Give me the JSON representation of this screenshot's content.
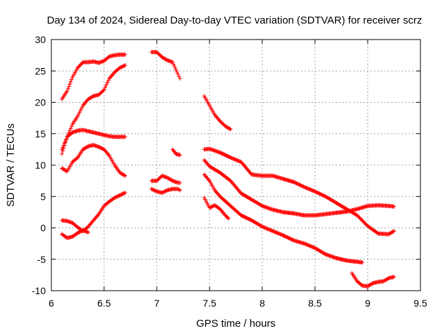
{
  "chart_data": {
    "type": "scatter",
    "title": "Day 134 of 2024, Sidereal Day-to-day VTEC variation (SDTVAR) for receiver scrz",
    "xlabel": "GPS time / hours",
    "ylabel": "SDTVAR / TECUs",
    "xlim": [
      6,
      9.5
    ],
    "ylim": [
      -10,
      30
    ],
    "xticks": [
      "6",
      "6.5",
      "7",
      "7.5",
      "8",
      "8.5",
      "9",
      "9.5"
    ],
    "yticks": [
      "-10",
      "-5",
      "0",
      "5",
      "10",
      "15",
      "20",
      "25",
      "30"
    ],
    "grid": true,
    "marker": "plus",
    "color": "#ff0000",
    "series": [
      {
        "name": "track-1a",
        "x": [
          6.1,
          6.15,
          6.2,
          6.25,
          6.3,
          6.35,
          6.4,
          6.45,
          6.5,
          6.55,
          6.6,
          6.65,
          6.7
        ],
        "y": [
          20.5,
          21.8,
          24,
          25.5,
          26.4,
          26.4,
          26.5,
          26.3,
          26.6,
          27.3,
          27.5,
          27.6,
          27.6
        ]
      },
      {
        "name": "track-1b",
        "x": [
          6.1,
          6.15,
          6.2,
          6.25,
          6.3,
          6.35,
          6.4,
          6.45,
          6.5,
          6.55,
          6.6,
          6.65,
          6.7
        ],
        "y": [
          11.8,
          14.5,
          16.5,
          17.8,
          19.5,
          20.5,
          21,
          21.2,
          22,
          23.8,
          24.8,
          25.5,
          25.9
        ]
      },
      {
        "name": "track-1c",
        "x": [
          6.1,
          6.15,
          6.2,
          6.25,
          6.3,
          6.35,
          6.4,
          6.45,
          6.5,
          6.55,
          6.6,
          6.65,
          6.7
        ],
        "y": [
          12.5,
          14.5,
          15.2,
          15.5,
          15.6,
          15.4,
          15.2,
          15,
          14.8,
          14.6,
          14.5,
          14.5,
          14.5
        ]
      },
      {
        "name": "track-1d",
        "x": [
          6.1,
          6.15,
          6.2,
          6.25,
          6.3,
          6.35,
          6.4,
          6.45,
          6.5,
          6.55,
          6.6,
          6.65,
          6.7
        ],
        "y": [
          9.5,
          9,
          10.5,
          11.2,
          12.5,
          13,
          13.2,
          12.9,
          12.5,
          11.5,
          10,
          8.8,
          8.3
        ]
      },
      {
        "name": "track-1e",
        "x": [
          6.1,
          6.15,
          6.2,
          6.25,
          6.3,
          6.35,
          6.4,
          6.45,
          6.5,
          6.55,
          6.6,
          6.65,
          6.7
        ],
        "y": [
          1.2,
          1.1,
          0.8,
          0.1,
          -0.5,
          0.2,
          1.2,
          2.2,
          3.5,
          4.2,
          4.8,
          5.2,
          5.6
        ]
      },
      {
        "name": "track-1f",
        "x": [
          6.1,
          6.15,
          6.2,
          6.25,
          6.3,
          6.35
        ],
        "y": [
          -1,
          -1.6,
          -1.4,
          -0.8,
          -0.4,
          -0.7
        ]
      },
      {
        "name": "track-2a",
        "x": [
          6.95,
          7,
          7.05,
          7.1,
          7.15,
          7.2,
          7.22
        ],
        "y": [
          28,
          28,
          27.2,
          26.7,
          26.4,
          24.5,
          23.8
        ]
      },
      {
        "name": "track-2b",
        "x": [
          6.95,
          7,
          7.05,
          7.1,
          7.15,
          7.2,
          7.22
        ],
        "y": [
          7.5,
          7.5,
          8.3,
          8,
          7.5,
          7.2,
          7.2
        ]
      },
      {
        "name": "track-2c",
        "x": [
          6.95,
          7,
          7.05,
          7.1,
          7.15,
          7.2,
          7.22
        ],
        "y": [
          6.2,
          5.8,
          5.6,
          6,
          6.2,
          6.2,
          6
        ]
      },
      {
        "name": "track-2d",
        "x": [
          7.15,
          7.18,
          7.22
        ],
        "y": [
          12.5,
          11.8,
          11.6
        ]
      },
      {
        "name": "track-3a",
        "x": [
          7.45,
          7.5,
          7.55,
          7.6,
          7.65,
          7.7
        ],
        "y": [
          21,
          19.5,
          18,
          17,
          16.2,
          15.7
        ]
      },
      {
        "name": "track-3b",
        "x": [
          7.45,
          7.5,
          7.55,
          7.6,
          7.7,
          7.8,
          7.9,
          8,
          8.1,
          8.2,
          8.3,
          8.4,
          8.5,
          8.6,
          8.7,
          8.8,
          8.9,
          9,
          9.1,
          9.2,
          9.25
        ],
        "y": [
          12.5,
          12.6,
          12.3,
          12,
          11.2,
          10.5,
          8.5,
          8.3,
          8.3,
          7.8,
          7.3,
          6.5,
          5.8,
          5,
          4,
          3,
          2,
          0.3,
          -0.9,
          -1,
          -0.5
        ]
      },
      {
        "name": "track-3c",
        "x": [
          7.45,
          7.5,
          7.6,
          7.7,
          7.8,
          7.9,
          8,
          8.1,
          8.2,
          8.3,
          8.4,
          8.5,
          8.6,
          8.7,
          8.8,
          8.9,
          9,
          9.1,
          9.2,
          9.25
        ],
        "y": [
          10.8,
          9.8,
          8.8,
          7.5,
          5.5,
          4.5,
          3.5,
          2.9,
          2.5,
          2.3,
          2,
          2,
          2.2,
          2.4,
          2.6,
          3,
          3.5,
          3.6,
          3.5,
          3.4
        ]
      },
      {
        "name": "track-3d",
        "x": [
          7.45,
          7.5,
          7.55,
          7.6,
          7.7,
          7.8,
          7.9,
          8,
          8.1,
          8.2,
          8.3,
          8.4,
          8.5,
          8.6,
          8.7,
          8.8,
          8.95
        ],
        "y": [
          8.5,
          7.5,
          6,
          5,
          3.5,
          2,
          1.2,
          0.2,
          -0.5,
          -1.2,
          -2,
          -2.5,
          -3.2,
          -4.2,
          -4.8,
          -5.2,
          -5.5
        ]
      },
      {
        "name": "track-3e",
        "x": [
          7.45,
          7.5,
          7.55,
          7.6,
          7.65,
          7.68
        ],
        "y": [
          4.8,
          3.2,
          3.6,
          3,
          2,
          1.5
        ]
      },
      {
        "name": "track-3f",
        "x": [
          8.85,
          8.9,
          8.95,
          9,
          9.05,
          9.1,
          9.15,
          9.2,
          9.25
        ],
        "y": [
          -7.2,
          -8.5,
          -9.2,
          -9.3,
          -8.8,
          -8.6,
          -8.5,
          -8,
          -7.8
        ]
      }
    ]
  }
}
